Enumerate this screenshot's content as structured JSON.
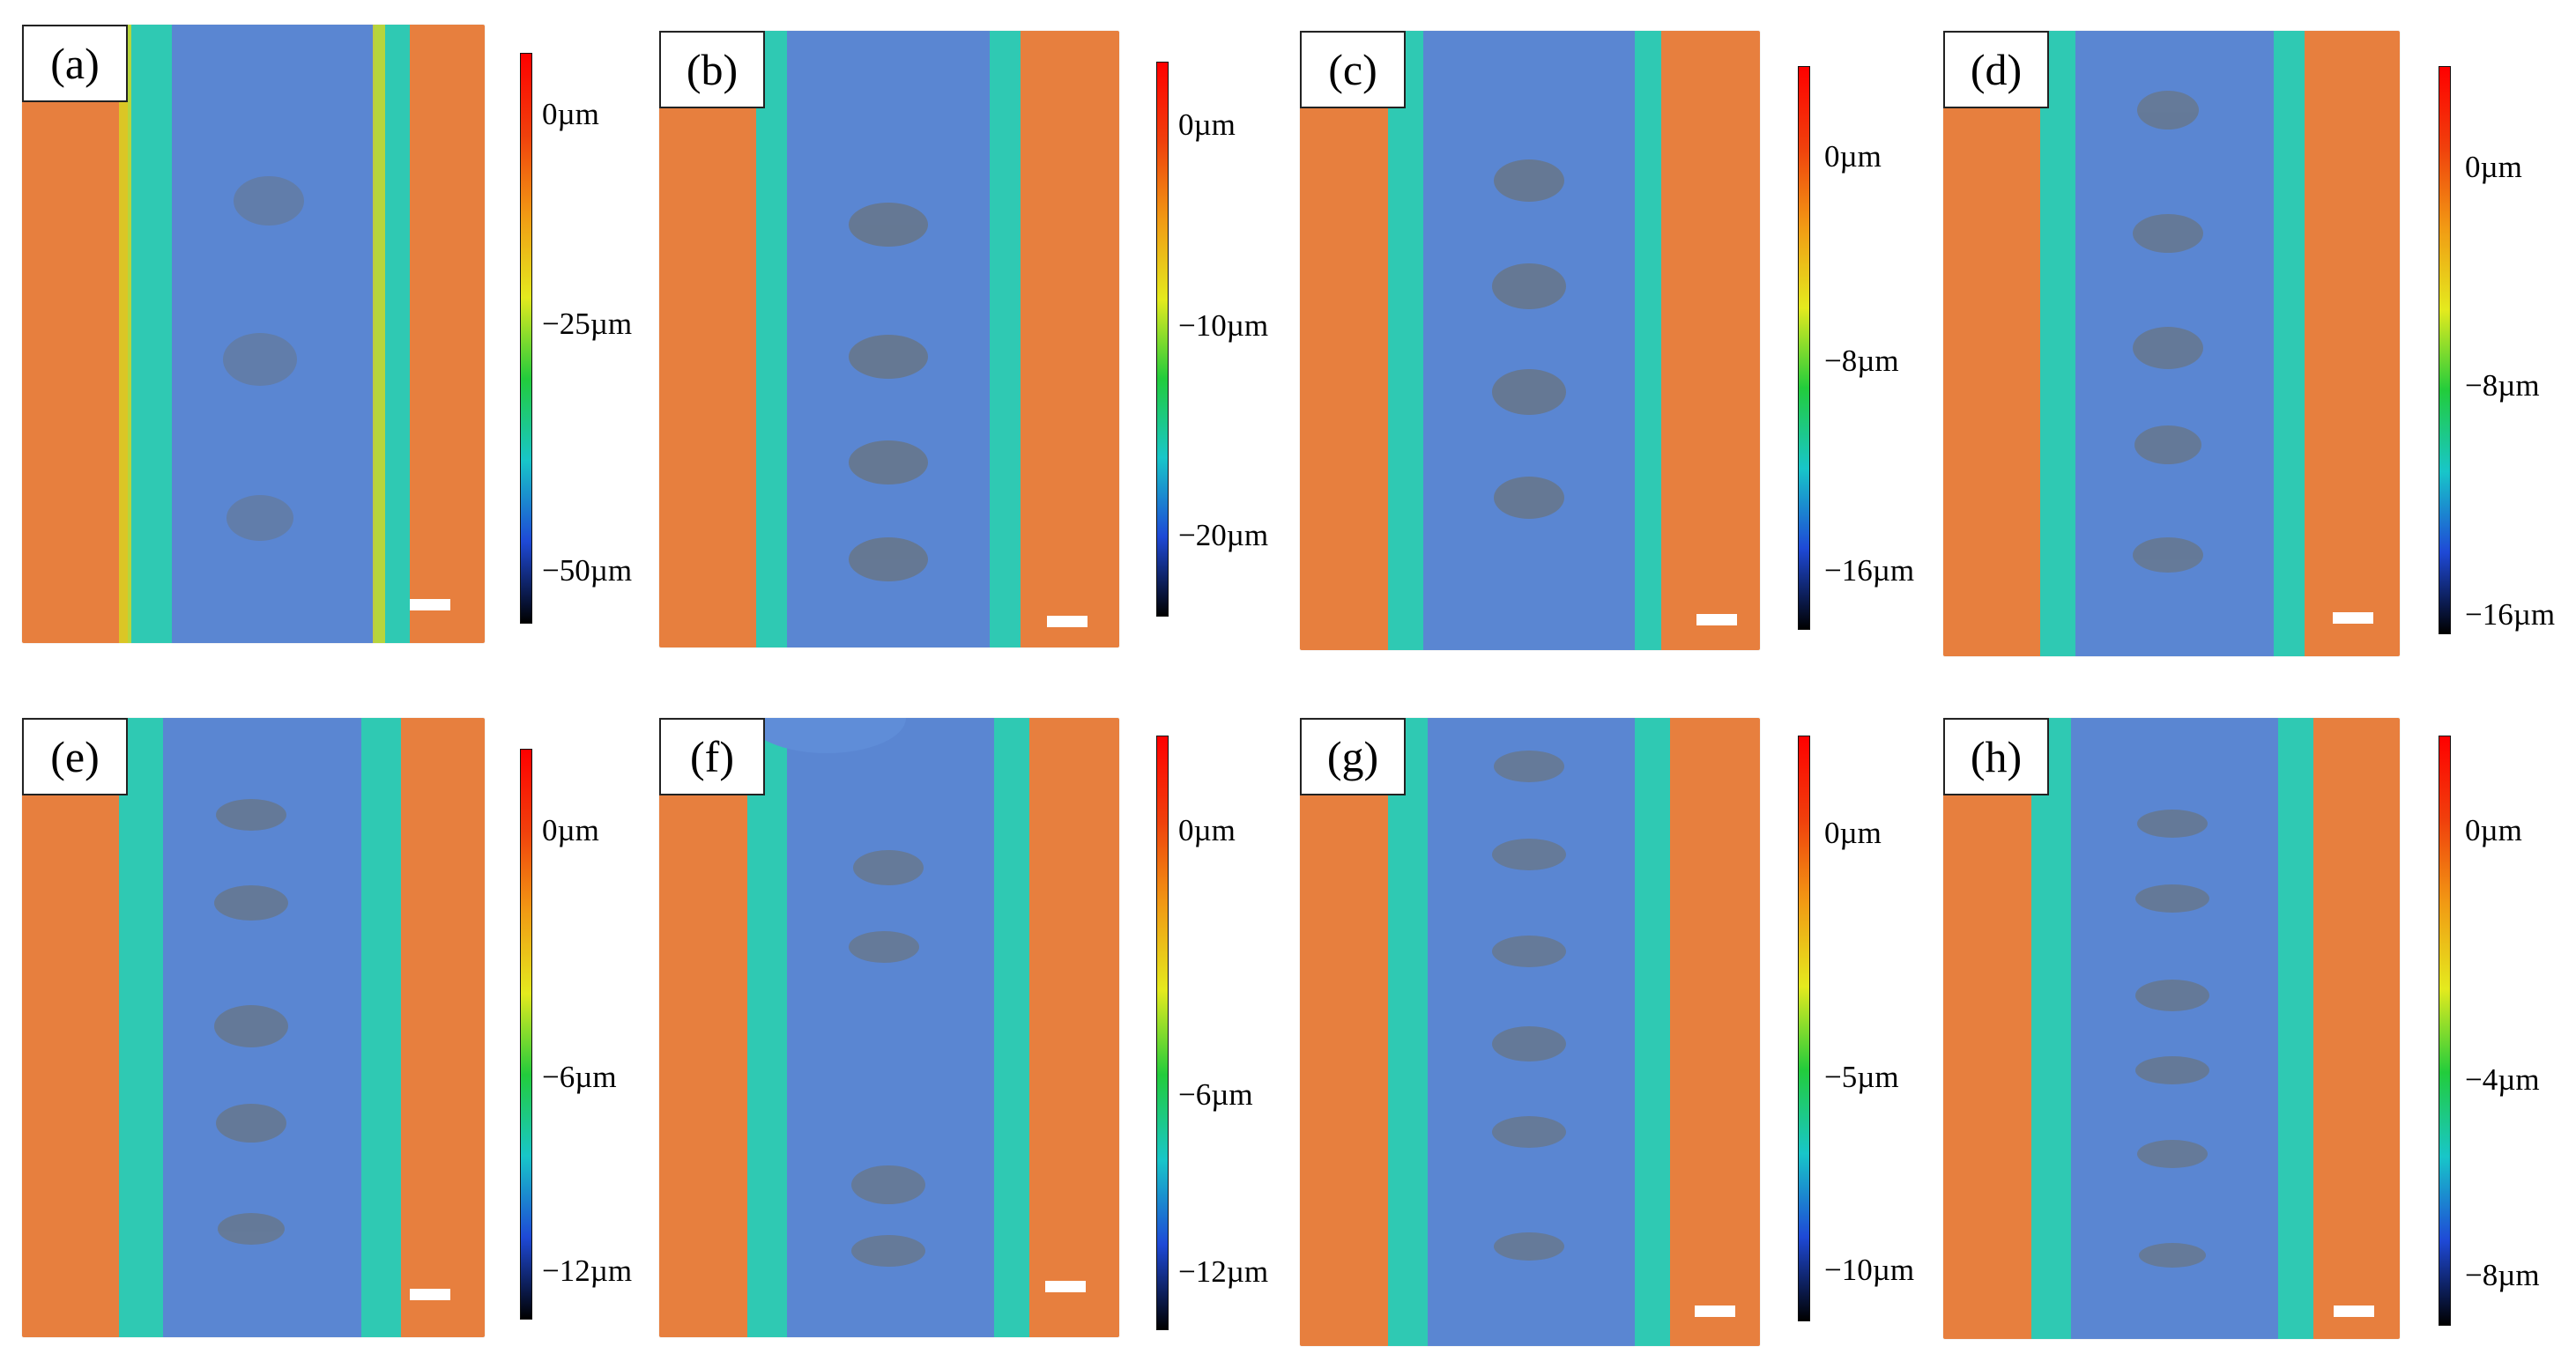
{
  "colormap": [
    "#000000",
    "#1e49d6",
    "#18c6c9",
    "#22cc3c",
    "#e4ea1e",
    "#f19b14",
    "#f0400c",
    "#ff0000"
  ],
  "colors": {
    "substrate": "#e77f3e",
    "track": "#5a86d2",
    "rim": "#2fc9b3",
    "trough": "#6f6e60"
  },
  "panels": [
    {
      "label": "(a)",
      "ticks": [
        "0µm",
        "−25µm",
        "−50µm"
      ]
    },
    {
      "label": "(b)",
      "ticks": [
        "0µm",
        "−10µm",
        "−20µm"
      ]
    },
    {
      "label": "(c)",
      "ticks": [
        "0µm",
        "−8µm",
        "−16µm"
      ]
    },
    {
      "label": "(d)",
      "ticks": [
        "0µm",
        "−8µm",
        "−16µm"
      ]
    },
    {
      "label": "(e)",
      "ticks": [
        "0µm",
        "−6µm",
        "−12µm"
      ]
    },
    {
      "label": "(f)",
      "ticks": [
        "0µm",
        "−6µm",
        "−12µm"
      ]
    },
    {
      "label": "(g)",
      "ticks": [
        "0µm",
        "−5µm",
        "−10µm"
      ]
    },
    {
      "label": "(h)",
      "ticks": [
        "0µm",
        "−4µm",
        "−8µm"
      ]
    }
  ]
}
